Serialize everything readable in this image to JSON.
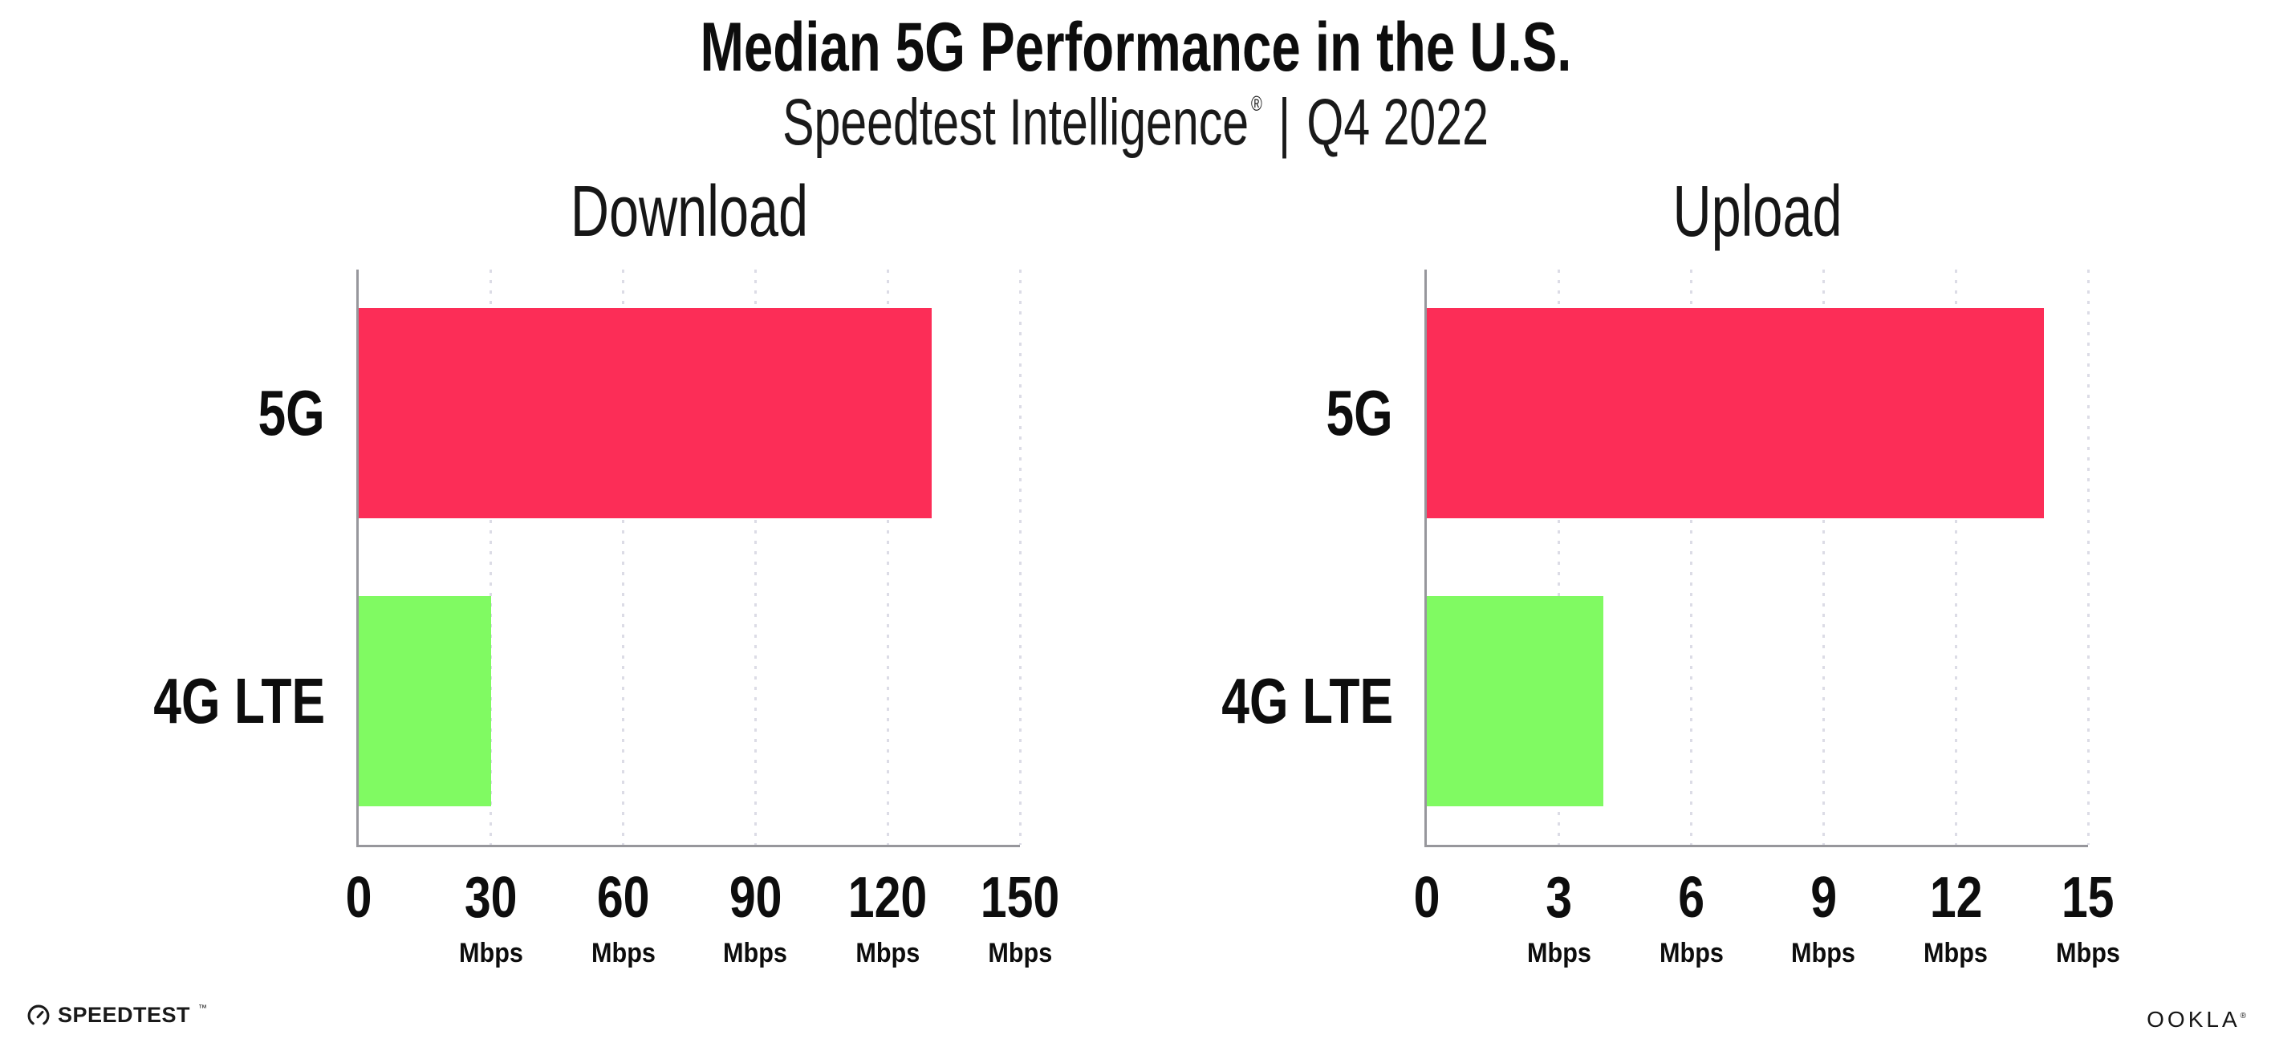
{
  "header": {
    "title": "Median 5G Performance in the U.S.",
    "subtitle": {
      "brand": "Speedtest Intelligence",
      "registered_mark": "®",
      "separator": "|",
      "period": "Q4 2022"
    }
  },
  "chart_data": [
    {
      "type": "bar",
      "orientation": "horizontal",
      "title": "Download",
      "categories": [
        "5G",
        "4G LTE"
      ],
      "values": [
        130,
        30
      ],
      "unit": "Mbps",
      "xlim": [
        0,
        150
      ],
      "xticks": [
        0,
        30,
        60,
        90,
        120,
        150
      ],
      "grid": "vertical-dotted",
      "legend": "none",
      "bar_colors": [
        "#FC2D57",
        "#80FA62"
      ]
    },
    {
      "type": "bar",
      "orientation": "horizontal",
      "title": "Upload",
      "categories": [
        "5G",
        "4G LTE"
      ],
      "values": [
        14,
        4
      ],
      "unit": "Mbps",
      "xlim": [
        0,
        15
      ],
      "xticks": [
        0,
        3,
        6,
        9,
        12,
        15
      ],
      "grid": "vertical-dotted",
      "legend": "none",
      "bar_colors": [
        "#FC2D57",
        "#80FA62"
      ]
    }
  ],
  "footer": {
    "speedtest": {
      "icon": "speedtest-gauge-icon",
      "label": "SPEEDTEST",
      "trademark": "™"
    },
    "ookla": {
      "label": "OOKLA",
      "registered_mark": "®"
    }
  },
  "style": {
    "bar_5g_color": "#FC2D57",
    "bar_lte_color": "#80FA62",
    "axis_color": "#97979C",
    "grid_color": "#DCDCE6",
    "background": "#FFFFFF",
    "text_color": "#111111"
  }
}
